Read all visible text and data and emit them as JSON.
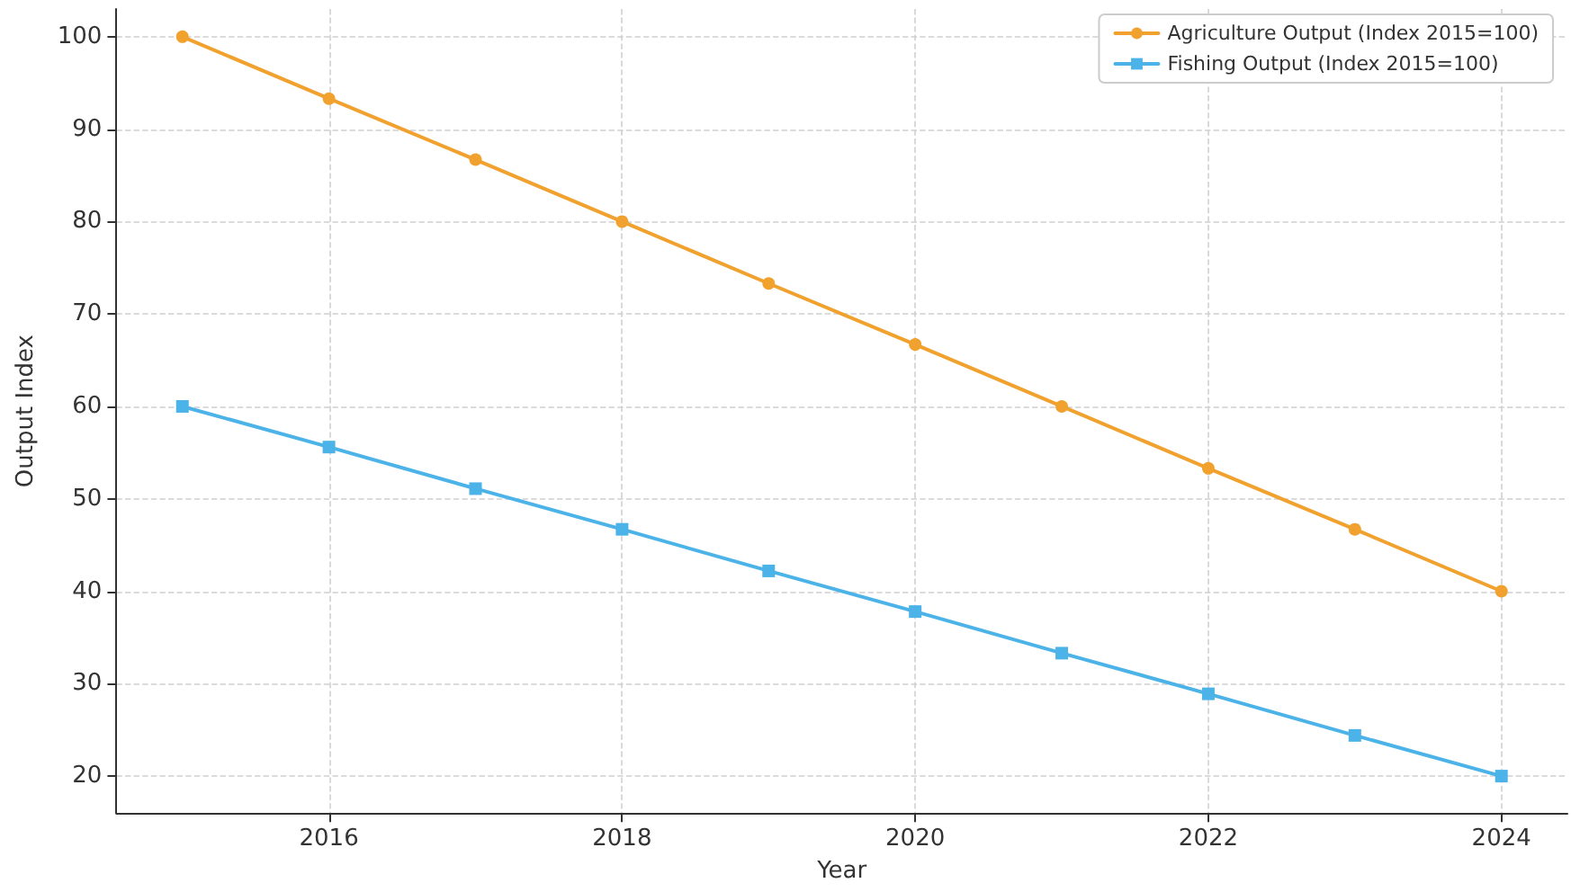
{
  "chart_data": {
    "type": "line",
    "xlabel": "Year",
    "ylabel": "Output Index",
    "x": [
      2015,
      2016,
      2017,
      2018,
      2019,
      2020,
      2021,
      2022,
      2023,
      2024
    ],
    "series": [
      {
        "name": "Agriculture Output (Index 2015=100)",
        "color": "#f0a12e",
        "marker": "circle",
        "values": [
          100,
          93.3,
          86.7,
          80,
          73.3,
          66.7,
          60,
          53.3,
          46.7,
          40
        ]
      },
      {
        "name": "Fishing Output (Index 2015=100)",
        "color": "#4cb3e8",
        "marker": "square",
        "values": [
          60,
          55.6,
          51.1,
          46.7,
          42.2,
          37.8,
          33.3,
          28.9,
          24.4,
          20
        ]
      }
    ],
    "xlim": [
      2014.55,
      2024.45
    ],
    "xticks": [
      2016,
      2018,
      2020,
      2022,
      2024
    ],
    "ylim": [
      16,
      103
    ],
    "yticks": [
      20,
      30,
      40,
      50,
      60,
      70,
      80,
      90,
      100
    ],
    "grid": true,
    "legend": "top right",
    "line_style": "solid"
  }
}
